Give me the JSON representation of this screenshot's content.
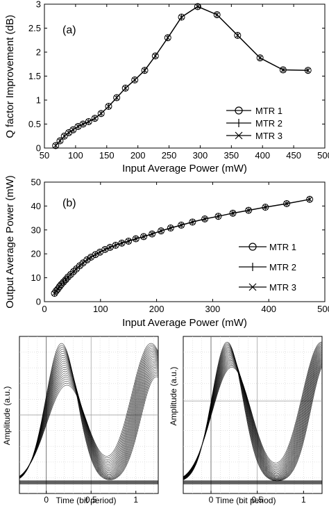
{
  "chart_data": [
    {
      "type": "line",
      "panel_label": "(a)",
      "xlabel": "Input Average Power (mW)",
      "ylabel": "Q factor Improvement (dB)",
      "xlim": [
        50,
        500
      ],
      "ylim": [
        0,
        3
      ],
      "xticks": [
        50,
        100,
        150,
        200,
        250,
        300,
        350,
        400,
        450,
        500
      ],
      "yticks": [
        0,
        0.5,
        1,
        1.5,
        2,
        2.5,
        3
      ],
      "legend_position": "bottom-right",
      "grid": false,
      "series": [
        {
          "name": "MTR 1",
          "marker": "circle"
        },
        {
          "name": "MTR 2",
          "marker": "plus"
        },
        {
          "name": "MTR 3",
          "marker": "x"
        }
      ],
      "x": [
        68,
        75,
        82,
        89,
        96,
        104,
        112,
        121,
        131,
        141,
        153,
        166,
        180,
        195,
        211,
        228,
        248,
        270,
        296,
        327,
        360,
        396,
        433,
        473
      ],
      "y": [
        0.05,
        0.15,
        0.25,
        0.32,
        0.38,
        0.45,
        0.5,
        0.55,
        0.62,
        0.72,
        0.87,
        1.05,
        1.25,
        1.42,
        1.62,
        1.92,
        2.3,
        2.73,
        2.95,
        2.78,
        2.35,
        1.88,
        1.63,
        1.62
      ]
    },
    {
      "type": "line",
      "panel_label": "(b)",
      "xlabel": "Input Average Power (mW)",
      "ylabel": "Output Average Power (mW)",
      "xlim": [
        0,
        500
      ],
      "ylim": [
        0,
        50
      ],
      "xticks": [
        0,
        100,
        200,
        300,
        400,
        500
      ],
      "yticks": [
        0,
        10,
        20,
        30,
        40,
        50
      ],
      "legend_position": "bottom-right",
      "grid": false,
      "series": [
        {
          "name": "MTR 1",
          "marker": "circle"
        },
        {
          "name": "MTR 2",
          "marker": "plus"
        },
        {
          "name": "MTR 3",
          "marker": "x"
        }
      ],
      "x": [
        18,
        21,
        24,
        27,
        30,
        34,
        38,
        42,
        47,
        52,
        57,
        63,
        69,
        76,
        83,
        91,
        99,
        108,
        117,
        127,
        138,
        150,
        163,
        177,
        192,
        208,
        225,
        244,
        264,
        286,
        310,
        336,
        364,
        394,
        432,
        473
      ],
      "y": [
        3.5,
        4.5,
        5.3,
        6.3,
        7.2,
        8.2,
        9.2,
        10.3,
        11.4,
        12.6,
        13.7,
        15,
        16.2,
        17.5,
        18.6,
        19.7,
        20.7,
        21.8,
        22.7,
        23.6,
        24.5,
        25.3,
        26.3,
        27.2,
        28.3,
        29.6,
        30.8,
        32,
        33.3,
        34.6,
        35.7,
        37,
        38.2,
        39.5,
        41,
        42.8
      ]
    },
    {
      "type": "line",
      "subtype": "eye-diagram",
      "xlabel": "Time (bit period)",
      "ylabel": "Amplitude (a.u.)",
      "xlim": [
        -0.3,
        1.25
      ],
      "xticks": [
        0,
        0.5,
        1
      ],
      "grid": true
    },
    {
      "type": "line",
      "subtype": "eye-diagram",
      "xlabel": "Time (bit period)",
      "ylabel": "Amplitude (a.u.)",
      "xlim": [
        -0.3,
        1.2
      ],
      "xticks": [
        0,
        0.5,
        1
      ],
      "grid": true
    }
  ]
}
